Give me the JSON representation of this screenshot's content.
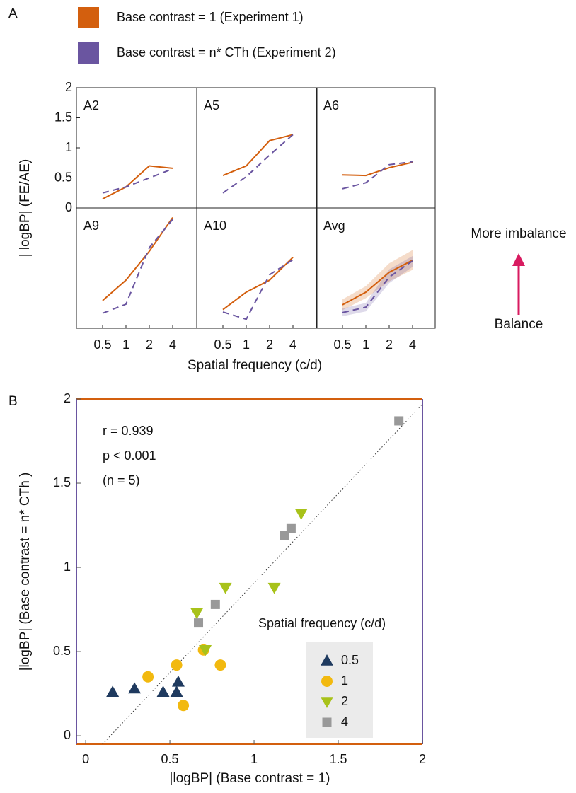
{
  "chart_data": [
    {
      "type": "line",
      "panel_label": "A",
      "series": [
        {
          "name": "Base contrast = 1 (Experiment 1)",
          "color": "#d35f0e",
          "dashed": false
        },
        {
          "name": "Base contrast = n* CTh (Experiment 2)",
          "color": "#6a55a0",
          "dashed": true
        }
      ],
      "categories": [
        "0.5",
        "1",
        "2",
        "4"
      ],
      "ylim": [
        0,
        2
      ],
      "yticks": [
        0,
        0.5,
        1,
        1.5,
        2
      ],
      "x_label": "Spatial frequency (c/d)",
      "y_label": "| logBP| (FE/AE)",
      "panels": [
        {
          "title": "A2",
          "values": [
            [
              0.15,
              0.35,
              0.7,
              0.66
            ],
            [
              0.25,
              0.35,
              0.5,
              0.65
            ]
          ]
        },
        {
          "title": "A5",
          "values": [
            [
              0.54,
              0.7,
              1.12,
              1.22
            ],
            [
              0.25,
              0.52,
              0.88,
              1.22
            ]
          ]
        },
        {
          "title": "A6",
          "values": [
            [
              0.55,
              0.54,
              0.67,
              0.76
            ],
            [
              0.32,
              0.42,
              0.72,
              0.77
            ]
          ]
        },
        {
          "title": "A9",
          "values": [
            [
              0.46,
              0.8,
              1.28,
              1.84
            ],
            [
              0.25,
              0.4,
              1.34,
              1.81
            ]
          ]
        },
        {
          "title": "A10",
          "values": [
            [
              0.31,
              0.6,
              0.8,
              1.18
            ],
            [
              0.27,
              0.15,
              0.89,
              1.14
            ]
          ]
        },
        {
          "title": "Avg",
          "values": [
            [
              0.39,
              0.6,
              0.93,
              1.13
            ],
            [
              0.26,
              0.35,
              0.85,
              1.12
            ]
          ],
          "lower": [
            [
              0.3,
              0.5,
              0.78,
              0.97
            ],
            [
              0.2,
              0.28,
              0.75,
              1.02
            ]
          ],
          "upper": [
            [
              0.48,
              0.7,
              1.08,
              1.3
            ],
            [
              0.33,
              0.42,
              0.98,
              1.2
            ]
          ]
        }
      ],
      "annotations": {
        "top": "More imbalance",
        "bottom": "Balance"
      }
    },
    {
      "type": "scatter",
      "panel_label": "B",
      "x_label": "|logBP| (Base contrast = 1)",
      "y_label": "|logBP| (Base contrast = n* CTh )",
      "xlim": [
        -0.055,
        2
      ],
      "ylim": [
        -0.05,
        2
      ],
      "xticks": [
        0,
        0.5,
        1,
        1.5,
        2
      ],
      "yticks": [
        0,
        0.5,
        1,
        1.5,
        2
      ],
      "stats": [
        "r = 0.939",
        "p < 0.001",
        "(n = 5)"
      ],
      "legend_title": "Spatial frequency (c/d)",
      "fit_line": {
        "x": [
          0.1,
          2
        ],
        "y": [
          -0.05,
          1.97
        ]
      },
      "series": [
        {
          "name": "0.5",
          "color": "#1f3a5f",
          "marker": "triangle-up",
          "x": [
            0.16,
            0.29,
            0.46,
            0.54,
            0.55
          ],
          "values": [
            0.26,
            0.28,
            0.26,
            0.26,
            0.32
          ]
        },
        {
          "name": "1",
          "color": "#f2b90f",
          "marker": "circle",
          "x": [
            0.37,
            0.54,
            0.58,
            0.7,
            0.8
          ],
          "values": [
            0.35,
            0.42,
            0.18,
            0.51,
            0.42
          ]
        },
        {
          "name": "2",
          "color": "#a8c21a",
          "marker": "triangle-down",
          "x": [
            0.66,
            0.71,
            0.83,
            1.12,
            1.28
          ],
          "values": [
            0.73,
            0.51,
            0.88,
            0.88,
            1.32
          ]
        },
        {
          "name": "4",
          "color": "#999999",
          "marker": "square",
          "x": [
            0.67,
            0.77,
            1.18,
            1.22,
            1.86
          ],
          "values": [
            0.67,
            0.78,
            1.19,
            1.23,
            1.87
          ]
        }
      ]
    }
  ]
}
